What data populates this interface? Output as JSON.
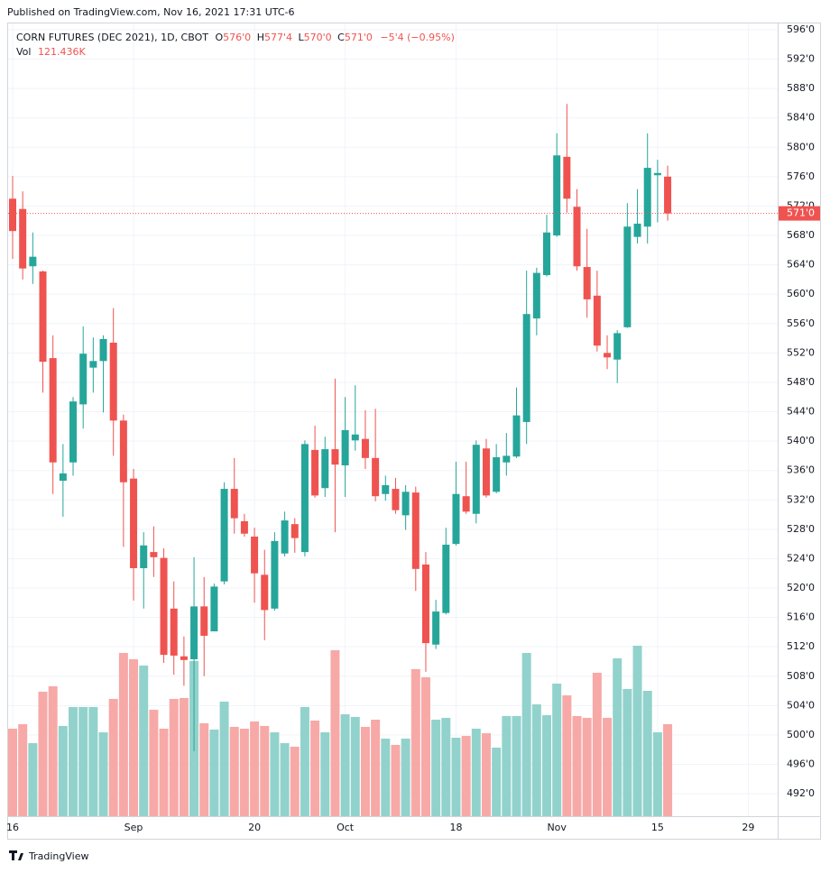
{
  "header": {
    "published": "Published on TradingView.com, Nov 16, 2021 17:31 UTC-6",
    "brand": "TradingView"
  },
  "chart_data": {
    "type": "candlestick",
    "title": "CORN FUTURES (DEC 2021), 1D, CBOT",
    "legend": {
      "o": "O",
      "o_value": "576'0",
      "h": "H",
      "h_value": "577'4",
      "l": "L",
      "l_value": "570'0",
      "c": "C",
      "c_value": "571'0",
      "change": "−5'4 (−0.95%)",
      "vol": "Vol",
      "vol_value": "121.436K"
    },
    "categories": [
      "16",
      null,
      null,
      null,
      null,
      null,
      null,
      null,
      null,
      null,
      null,
      null,
      "Sep",
      null,
      null,
      null,
      null,
      null,
      null,
      null,
      null,
      null,
      null,
      null,
      "20",
      null,
      null,
      null,
      null,
      null,
      null,
      null,
      null,
      "Oct",
      null,
      null,
      null,
      null,
      null,
      null,
      null,
      null,
      null,
      null,
      "18",
      null,
      null,
      null,
      null,
      null,
      null,
      null,
      null,
      null,
      "Nov",
      null,
      null,
      null,
      null,
      null,
      null,
      null,
      null,
      null,
      "15",
      null,
      null,
      null,
      null,
      null,
      null,
      null,
      null,
      "29"
    ],
    "open": [
      573,
      571.6,
      563.8,
      563.1,
      551.3,
      534.6,
      537.1,
      545,
      550,
      550.9,
      553.4,
      542.8,
      534.9,
      522.7,
      524.9,
      524.1,
      517.2,
      510.7,
      510.3,
      517.5,
      514.1,
      520.9,
      533.5,
      529.1,
      527,
      521.8,
      517.2,
      524.7,
      528.7,
      524.9,
      538.8,
      533.6,
      538.9,
      536.7,
      540.1,
      540.3,
      537.7,
      532.8,
      533.5,
      529.9,
      533,
      523.2,
      512.3,
      516.6,
      526,
      532.5,
      530.1,
      539,
      533.1,
      537.1,
      537.9,
      542.6,
      556.7,
      562.6,
      568,
      578.7,
      571.9,
      563.7,
      559.8,
      552,
      551.1,
      555.5,
      567.8,
      569.2,
      576.2,
      576,
      null,
      null,
      null,
      null,
      null,
      null,
      null,
      null
    ],
    "high": [
      576.1,
      574,
      568.4,
      563.2,
      554.4,
      539.6,
      546,
      555.6,
      554.1,
      554.4,
      558.1,
      543.6,
      536.2,
      527.6,
      528.4,
      525.4,
      520.9,
      513.4,
      524.2,
      521.5,
      520.6,
      534.4,
      537.7,
      530.1,
      528.2,
      525.2,
      527.6,
      530.4,
      529.5,
      540.1,
      542.1,
      540.6,
      548.5,
      546,
      547.6,
      544.2,
      544.4,
      535.3,
      535,
      534,
      533.8,
      524.9,
      518.4,
      528.2,
      537.2,
      537.2,
      540.1,
      540.3,
      539.6,
      541.1,
      547.3,
      563.2,
      563.6,
      570.8,
      581.9,
      585.9,
      574.3,
      568.9,
      563.2,
      554.4,
      555.1,
      572.4,
      574.3,
      581.9,
      578.3,
      577.5,
      null,
      null,
      null,
      null,
      null,
      null,
      null,
      null
    ],
    "low": [
      564.8,
      562,
      561.4,
      546.6,
      532.8,
      529.7,
      535.3,
      541.7,
      546.6,
      543.9,
      538,
      525.6,
      518.3,
      517.2,
      521.5,
      509.8,
      508.2,
      506.7,
      497.8,
      508,
      514.1,
      520.5,
      527.4,
      527,
      518,
      512.9,
      516.9,
      524.3,
      524.8,
      524.3,
      532.3,
      532.4,
      527.6,
      532.4,
      538.7,
      536.2,
      531.8,
      531.9,
      530.1,
      527.9,
      519.6,
      508.6,
      511.7,
      516.4,
      525.8,
      530.1,
      528.8,
      532.3,
      532.9,
      535.3,
      537.7,
      539.6,
      554.4,
      562.4,
      567.8,
      571.1,
      563.2,
      556.8,
      552.2,
      549.8,
      547.9,
      555.4,
      566.9,
      566.9,
      569.8,
      570,
      null,
      null,
      null,
      null,
      null,
      null,
      null,
      null
    ],
    "close": [
      568.6,
      563.5,
      565.1,
      550.8,
      537.1,
      535.6,
      545.4,
      551.9,
      550.9,
      553.9,
      542.8,
      534.4,
      522.7,
      525.8,
      524.2,
      510.9,
      510.8,
      510.2,
      517.5,
      513.5,
      520.2,
      533.5,
      529.5,
      527.4,
      522,
      517,
      526.4,
      529.2,
      526.8,
      539.6,
      532.6,
      538.9,
      536.8,
      541.5,
      540.9,
      537.7,
      532.5,
      534,
      530.6,
      533.1,
      522.6,
      512.5,
      516.8,
      525.9,
      532.8,
      530.4,
      539.5,
      532.6,
      537.8,
      538,
      543.5,
      557.3,
      562.9,
      568.4,
      578.9,
      573,
      563.8,
      559.3,
      553,
      551.4,
      554.7,
      569.2,
      569.6,
      577.2,
      576.5,
      571,
      null,
      null,
      null,
      null,
      null,
      null,
      null,
      null
    ],
    "volume": [
      115500,
      121400,
      96400,
      164300,
      171400,
      119100,
      144100,
      144100,
      144100,
      110700,
      154800,
      215500,
      207200,
      198800,
      140500,
      115500,
      154800,
      156000,
      204800,
      122600,
      114300,
      151200,
      117900,
      115500,
      125000,
      119100,
      110700,
      96400,
      91700,
      144100,
      126200,
      110700,
      219100,
      134500,
      131000,
      117900,
      127400,
      102400,
      94100,
      102400,
      194100,
      183400,
      127400,
      129800,
      103600,
      106000,
      115500,
      109500,
      90500,
      132200,
      132200,
      215500,
      147600,
      133300,
      175000,
      159500,
      132200,
      129800,
      189300,
      129800,
      208400,
      167900,
      225000,
      165500,
      110700,
      121436,
      null,
      null,
      null,
      null,
      null,
      null,
      null,
      null
    ],
    "up_color": "#26a69a",
    "down_color": "#ef5350",
    "volume_up_color": "#92d2cc",
    "volume_down_color": "#f7a9a7",
    "ylim": [
      488.94,
      596.98
    ],
    "yticks": [
      {
        "value": 596,
        "label": "596'0"
      },
      {
        "value": 592,
        "label": "592'0"
      },
      {
        "value": 588,
        "label": "588'0"
      },
      {
        "value": 584,
        "label": "584'0"
      },
      {
        "value": 580,
        "label": "580'0"
      },
      {
        "value": 576,
        "label": "576'0"
      },
      {
        "value": 572,
        "label": "572'0"
      },
      {
        "value": 568,
        "label": "568'0"
      },
      {
        "value": 564,
        "label": "564'0"
      },
      {
        "value": 560,
        "label": "560'0"
      },
      {
        "value": 556,
        "label": "556'0"
      },
      {
        "value": 552,
        "label": "552'0"
      },
      {
        "value": 548,
        "label": "548'0"
      },
      {
        "value": 544,
        "label": "544'0"
      },
      {
        "value": 540,
        "label": "540'0"
      },
      {
        "value": 536,
        "label": "536'0"
      },
      {
        "value": 532,
        "label": "532'0"
      },
      {
        "value": 528,
        "label": "528'0"
      },
      {
        "value": 524,
        "label": "524'0"
      },
      {
        "value": 520,
        "label": "520'0"
      },
      {
        "value": 516,
        "label": "516'0"
      },
      {
        "value": 512,
        "label": "512'0"
      },
      {
        "value": 508,
        "label": "508'0"
      },
      {
        "value": 504,
        "label": "504'0"
      },
      {
        "value": 500,
        "label": "500'0"
      },
      {
        "value": 496,
        "label": "496'0"
      },
      {
        "value": 492,
        "label": "492'0"
      }
    ],
    "grid": true,
    "last_price": {
      "value": 571,
      "label": "571'0"
    }
  }
}
